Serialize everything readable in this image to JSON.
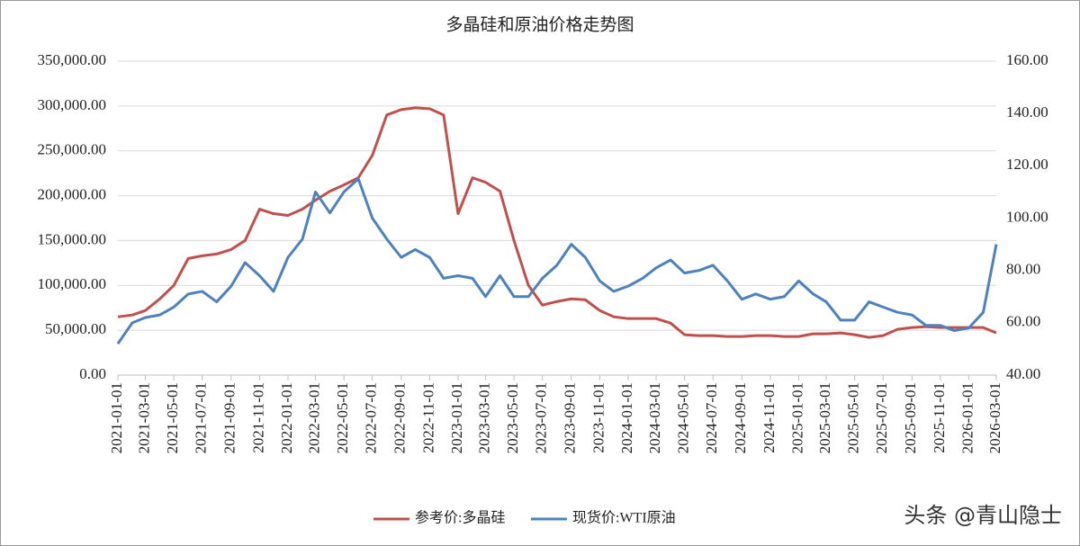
{
  "chart_data": {
    "type": "line",
    "title": "多晶硅和原油价格走势图",
    "watermark": "头条 @青山隐士",
    "x": [
      "2021-01-01",
      "2021-02-01",
      "2021-03-01",
      "2021-04-01",
      "2021-05-01",
      "2021-06-01",
      "2021-07-01",
      "2021-08-01",
      "2021-09-01",
      "2021-10-01",
      "2021-11-01",
      "2021-12-01",
      "2022-01-01",
      "2022-02-01",
      "2022-03-01",
      "2022-04-01",
      "2022-05-01",
      "2022-06-01",
      "2022-07-01",
      "2022-08-01",
      "2022-09-01",
      "2022-10-01",
      "2022-11-01",
      "2022-12-01",
      "2023-01-01",
      "2023-02-01",
      "2023-03-01",
      "2023-04-01",
      "2023-05-01",
      "2023-06-01",
      "2023-07-01",
      "2023-08-01",
      "2023-09-01",
      "2023-10-01",
      "2023-11-01",
      "2023-12-01",
      "2024-01-01",
      "2024-02-01",
      "2024-03-01",
      "2024-04-01",
      "2024-05-01",
      "2024-06-01",
      "2024-07-01",
      "2024-08-01",
      "2024-09-01",
      "2024-10-01",
      "2024-11-01",
      "2024-12-01",
      "2025-01-01",
      "2025-02-01",
      "2025-03-01",
      "2025-04-01",
      "2025-05-01",
      "2025-06-01",
      "2025-07-01",
      "2025-08-01",
      "2025-09-01",
      "2025-10-01",
      "2025-11-01",
      "2025-12-01",
      "2026-01-01",
      "2026-02-01",
      "2026-03-01"
    ],
    "series": [
      {
        "name": "参考价:多晶硅",
        "color": "#c0504d",
        "axis": "y",
        "values": [
          65000,
          67000,
          72000,
          85000,
          100000,
          130000,
          133000,
          135000,
          140000,
          150000,
          185000,
          180000,
          178000,
          185000,
          195000,
          205000,
          212000,
          220000,
          245000,
          290000,
          296000,
          298000,
          297000,
          290000,
          180000,
          220000,
          215000,
          205000,
          150000,
          100000,
          78000,
          82000,
          85000,
          84000,
          72000,
          65000,
          63000,
          63000,
          63000,
          58000,
          45000,
          44000,
          44000,
          43000,
          43000,
          44000,
          44000,
          43000,
          43000,
          46000,
          46000,
          47000,
          45000,
          42000,
          44000,
          51000,
          53000,
          54000,
          53000,
          53000,
          53000,
          53000,
          47000
        ]
      },
      {
        "name": "现货价:WTI原油",
        "color": "#4f81bd",
        "axis": "y2",
        "values": [
          52,
          60,
          62,
          63,
          66,
          71,
          72,
          68,
          74,
          83,
          78,
          72,
          85,
          92,
          110,
          102,
          110,
          115,
          100,
          92,
          85,
          88,
          85,
          77,
          78,
          77,
          70,
          78,
          70,
          70,
          77,
          82,
          90,
          85,
          76,
          72,
          74,
          77,
          81,
          84,
          79,
          80,
          82,
          76,
          69,
          71,
          69,
          70,
          76,
          71,
          68,
          61,
          61,
          68,
          66,
          64,
          63,
          59,
          59,
          57,
          58,
          64,
          90
        ]
      }
    ],
    "xlim": [
      "2021-01-01",
      "2026-03-01"
    ],
    "xticks": [
      "2021-01-01",
      "2021-03-01",
      "2021-05-01",
      "2021-07-01",
      "2021-09-01",
      "2021-11-01",
      "2022-01-01",
      "2022-03-01",
      "2022-05-01",
      "2022-07-01",
      "2022-09-01",
      "2022-11-01",
      "2023-01-01",
      "2023-03-01",
      "2023-05-01",
      "2023-07-01",
      "2023-09-01",
      "2023-11-01",
      "2024-01-01",
      "2024-03-01",
      "2024-05-01",
      "2024-07-01",
      "2024-09-01",
      "2024-11-01",
      "2025-01-01",
      "2025-03-01",
      "2025-05-01",
      "2025-07-01",
      "2025-09-01",
      "2025-11-01",
      "2026-01-01",
      "2026-03-01"
    ],
    "ylim": [
      0,
      350000
    ],
    "yticks": [
      {
        "value": 0,
        "label": "0.00"
      },
      {
        "value": 50000,
        "label": "50,000.00"
      },
      {
        "value": 100000,
        "label": "100,000.00"
      },
      {
        "value": 150000,
        "label": "150,000.00"
      },
      {
        "value": 200000,
        "label": "200,000.00"
      },
      {
        "value": 250000,
        "label": "250,000.00"
      },
      {
        "value": 300000,
        "label": "300,000.00"
      },
      {
        "value": 350000,
        "label": "350,000.00"
      }
    ],
    "y2lim": [
      40,
      160
    ],
    "y2ticks": [
      {
        "value": 40,
        "label": "40.00"
      },
      {
        "value": 60,
        "label": "60.00"
      },
      {
        "value": 80,
        "label": "80.00"
      },
      {
        "value": 100,
        "label": "100.00"
      },
      {
        "value": 120,
        "label": "120.00"
      },
      {
        "value": 140,
        "label": "140.00"
      },
      {
        "value": 160,
        "label": "160.00"
      }
    ],
    "grid": true,
    "legend": "bottom"
  }
}
